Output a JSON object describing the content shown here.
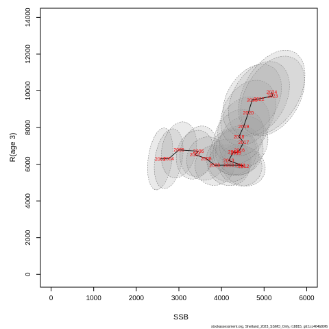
{
  "chart_data": {
    "type": "scatter",
    "xlabel": "SSB",
    "ylabel": "R(age 3)",
    "xlim": [
      -250,
      6250
    ],
    "ylim": [
      -700,
      14500
    ],
    "x_ticks": [
      0,
      1000,
      2000,
      3000,
      4000,
      5000,
      6000
    ],
    "y_ticks": [
      0,
      2000,
      4000,
      6000,
      8000,
      10000,
      12000,
      14000
    ],
    "x_tick_labels": [
      "0",
      "1000",
      "2000",
      "3000",
      "4000",
      "5000",
      "6000"
    ],
    "y_tick_labels": [
      "0",
      "2000",
      "4000",
      "6000",
      "8000",
      "10000",
      "12000",
      "14000"
    ],
    "grid": false,
    "legend": "none",
    "colors": {
      "points": "#ff0000",
      "path": "#000000",
      "ellipse_fill": "#a0a0a0",
      "ellipse_stroke": "#808080"
    },
    "points": [
      {
        "year": "2003",
        "x": 2560,
        "y": 6290
      },
      {
        "year": "2004",
        "x": 2760,
        "y": 6300
      },
      {
        "year": "2005",
        "x": 3000,
        "y": 6780
      },
      {
        "year": "2006",
        "x": 3460,
        "y": 6710
      },
      {
        "year": "2007",
        "x": 3380,
        "y": 6520
      },
      {
        "year": "2008",
        "x": 3640,
        "y": 6310
      },
      {
        "year": "2009",
        "x": 3840,
        "y": 5940
      },
      {
        "year": "2010",
        "x": 4170,
        "y": 5950
      },
      {
        "year": "2011",
        "x": 4440,
        "y": 5940
      },
      {
        "year": "2012",
        "x": 4520,
        "y": 5900
      },
      {
        "year": "2013",
        "x": 4170,
        "y": 6200
      },
      {
        "year": "2014",
        "x": 4280,
        "y": 6680
      },
      {
        "year": "2015",
        "x": 4340,
        "y": 6620
      },
      {
        "year": "2016",
        "x": 4420,
        "y": 6760
      },
      {
        "year": "2017",
        "x": 4520,
        "y": 7200
      },
      {
        "year": "2018",
        "x": 4410,
        "y": 7500
      },
      {
        "year": "2019",
        "x": 4520,
        "y": 8060
      },
      {
        "year": "2020",
        "x": 4630,
        "y": 8800
      },
      {
        "year": "2021",
        "x": 4720,
        "y": 9500
      },
      {
        "year": "2022",
        "x": 4880,
        "y": 9560
      },
      {
        "year": "2023",
        "x": 5200,
        "y": 9720
      },
      {
        "year": "2024",
        "x": 5180,
        "y": 9920
      }
    ],
    "path_order": [
      "2003",
      "2004",
      "2005",
      "2006",
      "2007",
      "2008",
      "2009",
      "2010",
      "2011",
      "2012",
      "2013",
      "2014",
      "2015",
      "2016",
      "2017",
      "2018",
      "2019",
      "2020",
      "2021",
      "2022",
      "2023",
      "2024"
    ],
    "ellipses": [
      {
        "cx": 2560,
        "cy": 6290,
        "sx": 280,
        "sy": 1700,
        "angle": 8
      },
      {
        "cx": 2760,
        "cy": 6300,
        "sx": 320,
        "sy": 1650,
        "angle": 10
      },
      {
        "cx": 3000,
        "cy": 6780,
        "sx": 400,
        "sy": 1550,
        "angle": 12
      },
      {
        "cx": 3460,
        "cy": 6710,
        "sx": 420,
        "sy": 1400,
        "angle": 15
      },
      {
        "cx": 3380,
        "cy": 6520,
        "sx": 430,
        "sy": 1350,
        "angle": 15
      },
      {
        "cx": 3640,
        "cy": 6310,
        "sx": 450,
        "sy": 1200,
        "angle": 20
      },
      {
        "cx": 3840,
        "cy": 5940,
        "sx": 460,
        "sy": 1100,
        "angle": 25
      },
      {
        "cx": 4170,
        "cy": 5950,
        "sx": 500,
        "sy": 1100,
        "angle": 28
      },
      {
        "cx": 4440,
        "cy": 5940,
        "sx": 520,
        "sy": 1100,
        "angle": 28
      },
      {
        "cx": 4520,
        "cy": 5900,
        "sx": 520,
        "sy": 1050,
        "angle": 28
      },
      {
        "cx": 4170,
        "cy": 6200,
        "sx": 530,
        "sy": 1150,
        "angle": 28
      },
      {
        "cx": 4280,
        "cy": 6680,
        "sx": 540,
        "sy": 1250,
        "angle": 28
      },
      {
        "cx": 4340,
        "cy": 6620,
        "sx": 540,
        "sy": 1250,
        "angle": 28
      },
      {
        "cx": 4420,
        "cy": 6760,
        "sx": 550,
        "sy": 1350,
        "angle": 30
      },
      {
        "cx": 4520,
        "cy": 7200,
        "sx": 550,
        "sy": 1450,
        "angle": 30
      },
      {
        "cx": 4410,
        "cy": 7500,
        "sx": 550,
        "sy": 1550,
        "angle": 30
      },
      {
        "cx": 4520,
        "cy": 8060,
        "sx": 560,
        "sy": 1700,
        "angle": 30
      },
      {
        "cx": 4630,
        "cy": 8800,
        "sx": 580,
        "sy": 1900,
        "angle": 30
      },
      {
        "cx": 4720,
        "cy": 9500,
        "sx": 600,
        "sy": 2100,
        "angle": 30
      },
      {
        "cx": 4880,
        "cy": 9560,
        "sx": 620,
        "sy": 2200,
        "angle": 30
      },
      {
        "cx": 5200,
        "cy": 9720,
        "sx": 640,
        "sy": 2350,
        "angle": 30
      },
      {
        "cx": 5180,
        "cy": 9920,
        "sx": 650,
        "sy": 2500,
        "angle": 30
      }
    ]
  },
  "credit": "stockassessment.org, Shetland_2023_SSMO_Only, r18815, git:1cc464b80f6"
}
